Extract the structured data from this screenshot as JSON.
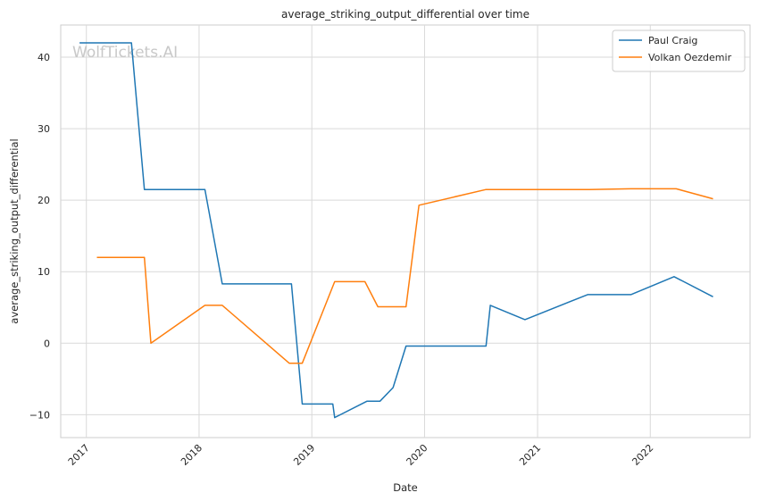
{
  "chart_data": {
    "type": "line",
    "title": "average_striking_output_differential over time",
    "xlabel": "Date",
    "ylabel": "average_striking_output_differential",
    "watermark": "WolfTickets.AI",
    "xlim": [
      "2016-10-10",
      "2022-11-20"
    ],
    "ylim": [
      -13.2,
      44.5
    ],
    "x_ticks": [
      "2017-01-01",
      "2018-01-01",
      "2019-01-01",
      "2020-01-01",
      "2021-01-01",
      "2022-01-01"
    ],
    "x_tick_labels": [
      "2017",
      "2018",
      "2019",
      "2020",
      "2021",
      "2022"
    ],
    "y_ticks": [
      -10,
      0,
      10,
      20,
      30,
      40
    ],
    "y_tick_labels": [
      "−10",
      "0",
      "10",
      "20",
      "30",
      "40"
    ],
    "grid": true,
    "legend_position": "top-right",
    "series": [
      {
        "name": "Paul Craig",
        "color": "#1f77b4",
        "points": [
          [
            "2016-12-10",
            42
          ],
          [
            "2017-05-27",
            42
          ],
          [
            "2017-07-08",
            21.5
          ],
          [
            "2018-01-20",
            21.5
          ],
          [
            "2018-03-17",
            8.3
          ],
          [
            "2018-10-27",
            8.3
          ],
          [
            "2018-12-01",
            -8.5
          ],
          [
            "2019-03-10",
            -8.5
          ],
          [
            "2019-03-16",
            -10.4
          ],
          [
            "2019-06-29",
            -8.1
          ],
          [
            "2019-08-10",
            -8.1
          ],
          [
            "2019-09-21",
            -6.2
          ],
          [
            "2019-11-02",
            -0.4
          ],
          [
            "2020-07-18",
            -0.4
          ],
          [
            "2020-08-01",
            5.3
          ],
          [
            "2020-11-21",
            3.3
          ],
          [
            "2021-06-12",
            6.8
          ],
          [
            "2021-10-30",
            6.8
          ],
          [
            "2022-03-19",
            9.3
          ],
          [
            "2022-07-23",
            6.5
          ]
        ]
      },
      {
        "name": "Volkan Oezdemir",
        "color": "#ff7f0e",
        "points": [
          [
            "2017-02-04",
            12
          ],
          [
            "2017-07-08",
            12
          ],
          [
            "2017-07-29",
            0
          ],
          [
            "2018-01-20",
            5.3
          ],
          [
            "2018-03-17",
            5.3
          ],
          [
            "2018-10-20",
            -2.8
          ],
          [
            "2018-12-01",
            -2.8
          ],
          [
            "2019-03-16",
            8.6
          ],
          [
            "2019-06-22",
            8.6
          ],
          [
            "2019-08-03",
            5.1
          ],
          [
            "2019-11-02",
            5.1
          ],
          [
            "2019-12-14",
            19.3
          ],
          [
            "2020-07-18",
            21.5
          ],
          [
            "2021-06-19",
            21.5
          ],
          [
            "2021-10-30",
            21.6
          ],
          [
            "2022-03-26",
            21.6
          ],
          [
            "2022-07-23",
            20.2
          ]
        ]
      }
    ]
  }
}
